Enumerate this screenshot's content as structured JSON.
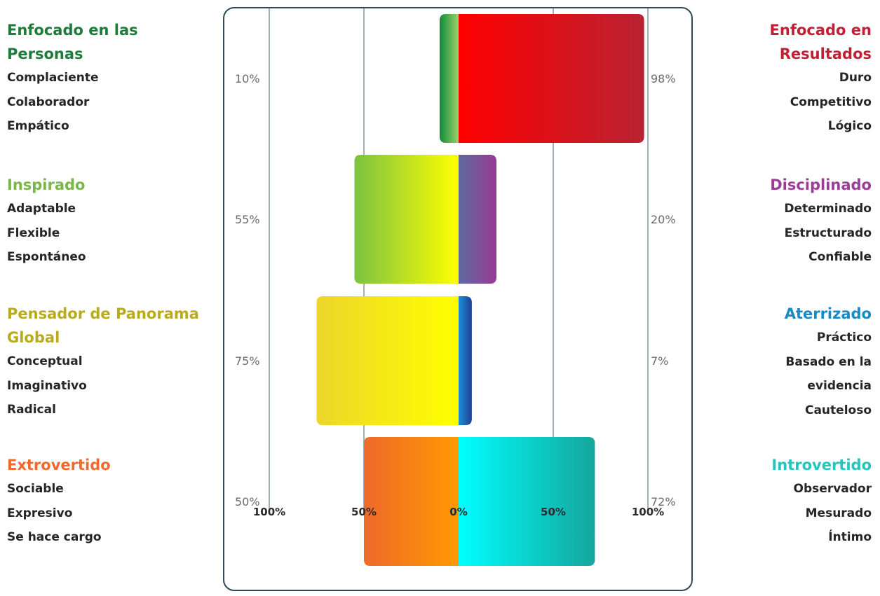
{
  "chart_data": {
    "type": "bar",
    "orientation": "horizontal-diverging",
    "x_ticks": [
      "100%",
      "50%",
      "0%",
      "50%",
      "100%"
    ],
    "xlim": [
      -100,
      100
    ],
    "rows": [
      {
        "left": {
          "title": [
            "Enfocado en las",
            "Personas"
          ],
          "traits": [
            "Complaciente",
            "Colaborador",
            "Empático"
          ],
          "label": "10%",
          "value": 10,
          "color": "#1e7b3a",
          "colors": [
            "#0e8a3a",
            "#9ed36a"
          ]
        },
        "right": {
          "title": [
            "Enfocado en",
            "Resultados"
          ],
          "traits": [
            "Duro",
            "Competitivo",
            "Lógico"
          ],
          "label": "98%",
          "value": 98,
          "color": "#c21f35",
          "colors": [
            "#ff0000",
            "#b82232"
          ]
        }
      },
      {
        "left": {
          "title": [
            "Inspirado"
          ],
          "traits": [
            "Adaptable",
            "Flexible",
            "Espontáneo"
          ],
          "label": "55%",
          "value": 55,
          "color": "#7ab648",
          "colors": [
            "#7cc242",
            "#ffff00"
          ]
        },
        "right": {
          "title": [
            "Disciplinado"
          ],
          "traits": [
            "Determinado",
            "Estructurado",
            "Confiable"
          ],
          "label": "20%",
          "value": 20,
          "color": "#9b3c97",
          "colors": [
            "#5b6aa0",
            "#9a3a95"
          ]
        }
      },
      {
        "left": {
          "title": [
            "Pensador de Panorama",
            "Global"
          ],
          "traits": [
            "Conceptual",
            "Imaginativo",
            "Radical"
          ],
          "label": "75%",
          "value": 75,
          "color": "#b9ac1b",
          "colors": [
            "#ecd52a",
            "#ffff00"
          ]
        },
        "right": {
          "title": [
            "Aterrizado"
          ],
          "traits": [
            "Práctico",
            "Basado en la",
            "evidencia",
            "Cauteloso"
          ],
          "label": "7%",
          "value": 7,
          "color": "#168ac6",
          "colors": [
            "#1a8fd6",
            "#203f96"
          ]
        }
      },
      {
        "left": {
          "title": [
            "Extrovertido"
          ],
          "traits": [
            "Sociable",
            "Expresivo",
            "Se hace cargo"
          ],
          "label": "50%",
          "value": 50,
          "color": "#ef6a2b",
          "colors": [
            "#ee6a2b",
            "#ff9900"
          ]
        },
        "right": {
          "title": [
            "Introvertido"
          ],
          "traits": [
            "Observador",
            "Mesurado",
            "Íntimo"
          ],
          "label": "72%",
          "value": 72,
          "color": "#22c6bd",
          "colors": [
            "#00ffff",
            "#15a59c"
          ]
        }
      }
    ]
  }
}
